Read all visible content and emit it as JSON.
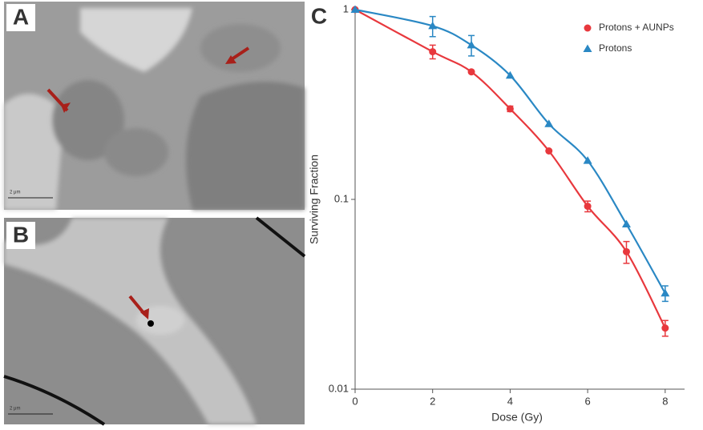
{
  "panels": [
    {
      "label": "A",
      "scale_bar": "2 μm"
    },
    {
      "label": "B",
      "scale_bar": "2 μm"
    }
  ],
  "chart_data": {
    "type": "scatter",
    "panel_label": "C",
    "x_label": "Dose (Gy)",
    "y_label": "Surviving Fraction",
    "log_y": true,
    "legend": "top-right",
    "xlim": [
      0,
      8.5
    ],
    "xticks": [
      0,
      2,
      4,
      6,
      8
    ],
    "ylim": [
      0.01,
      1
    ],
    "yticks": [
      0.01,
      0.1,
      1
    ],
    "series": [
      {
        "name": "Protons + AUNPs",
        "color": "#e8383d",
        "marker": "circle",
        "x": [
          0,
          2,
          3,
          4,
          5,
          6,
          7,
          8
        ],
        "values": [
          1,
          0.6,
          0.47,
          0.3,
          0.18,
          0.092,
          0.053,
          0.021
        ],
        "errors": [
          null,
          0.05,
          null,
          0.01,
          null,
          0.006,
          0.007,
          0.002
        ]
      },
      {
        "name": "Protons",
        "color": "#2a88c4",
        "marker": "triangle",
        "x": [
          0,
          2,
          3,
          4,
          5,
          6,
          7,
          8
        ],
        "values": [
          1,
          0.82,
          0.65,
          0.45,
          0.25,
          0.16,
          0.074,
          0.032
        ],
        "errors": [
          null,
          0.1,
          0.08,
          null,
          null,
          null,
          null,
          0.003
        ]
      }
    ]
  }
}
